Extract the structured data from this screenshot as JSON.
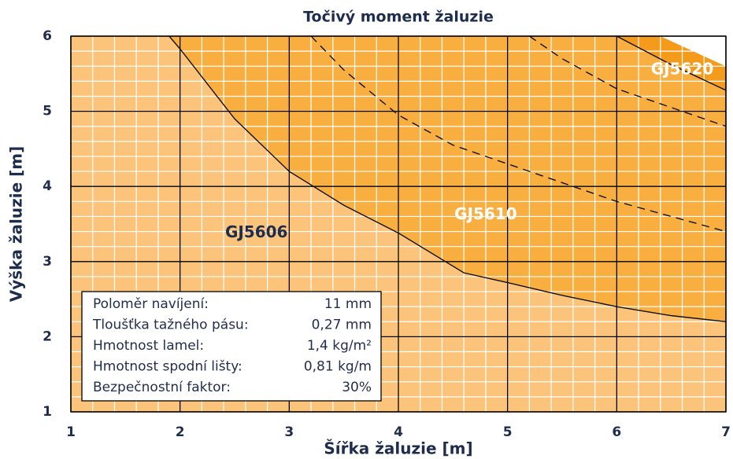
{
  "chart_data": {
    "type": "region",
    "title": "Točivý moment žaluzie",
    "x_label": "Šířka žaluzie [m]",
    "y_label": "Výška žaluzie [m]",
    "xlim": [
      1,
      7
    ],
    "ylim": [
      1,
      6
    ],
    "xticks": [
      1,
      2,
      3,
      4,
      5,
      6,
      7
    ],
    "yticks": [
      1,
      2,
      3,
      4,
      5,
      6
    ],
    "minor_grid_step": 0.2,
    "regions": [
      {
        "name": "GJ5606",
        "color": "#fcc47a",
        "label_color": "#1f2d4d"
      },
      {
        "name": "GJ5610",
        "color": "#f9ae40",
        "label_color": "#ffffff"
      },
      {
        "name": "GJ5620",
        "color": "#f49b1c",
        "label_color": "#ffffff"
      }
    ],
    "boundaries": [
      {
        "x": [
          1.9,
          2,
          2.5,
          3,
          3.5,
          4,
          4.6,
          5,
          5.5,
          6,
          6.5,
          7
        ],
        "y": [
          6,
          5.83,
          4.9,
          4.2,
          3.75,
          3.38,
          2.85,
          2.72,
          2.55,
          2.4,
          2.28,
          2.2
        ]
      },
      {
        "x": [
          6,
          6.5,
          7
        ],
        "y": [
          6,
          5.62,
          5.28
        ]
      }
    ],
    "limit": {
      "x": [
        6.4,
        7
      ],
      "y": [
        6,
        5.6
      ],
      "color": "#ffffff"
    },
    "dashed": [
      {
        "x": [
          3.2,
          3.5,
          4,
          4.5,
          5,
          5.5,
          6,
          6.5,
          7
        ],
        "y": [
          6,
          5.55,
          4.95,
          4.55,
          4.3,
          4.05,
          3.8,
          3.6,
          3.4
        ]
      },
      {
        "x": [
          5.2,
          5.5,
          6,
          6.5,
          7
        ],
        "y": [
          6,
          5.7,
          5.3,
          5.05,
          4.8
        ]
      }
    ],
    "info": [
      [
        "Poloměr navíjení:",
        "11 mm"
      ],
      [
        "Tloušťka tažného pásu:",
        "0,27 mm"
      ],
      [
        "Hmotnost lamel:",
        "1,4 kg/m²"
      ],
      [
        "Hmotnost spodní lišty:",
        "0,81 kg/m"
      ],
      [
        "Bezpečnostní faktor:",
        "30%"
      ]
    ]
  }
}
